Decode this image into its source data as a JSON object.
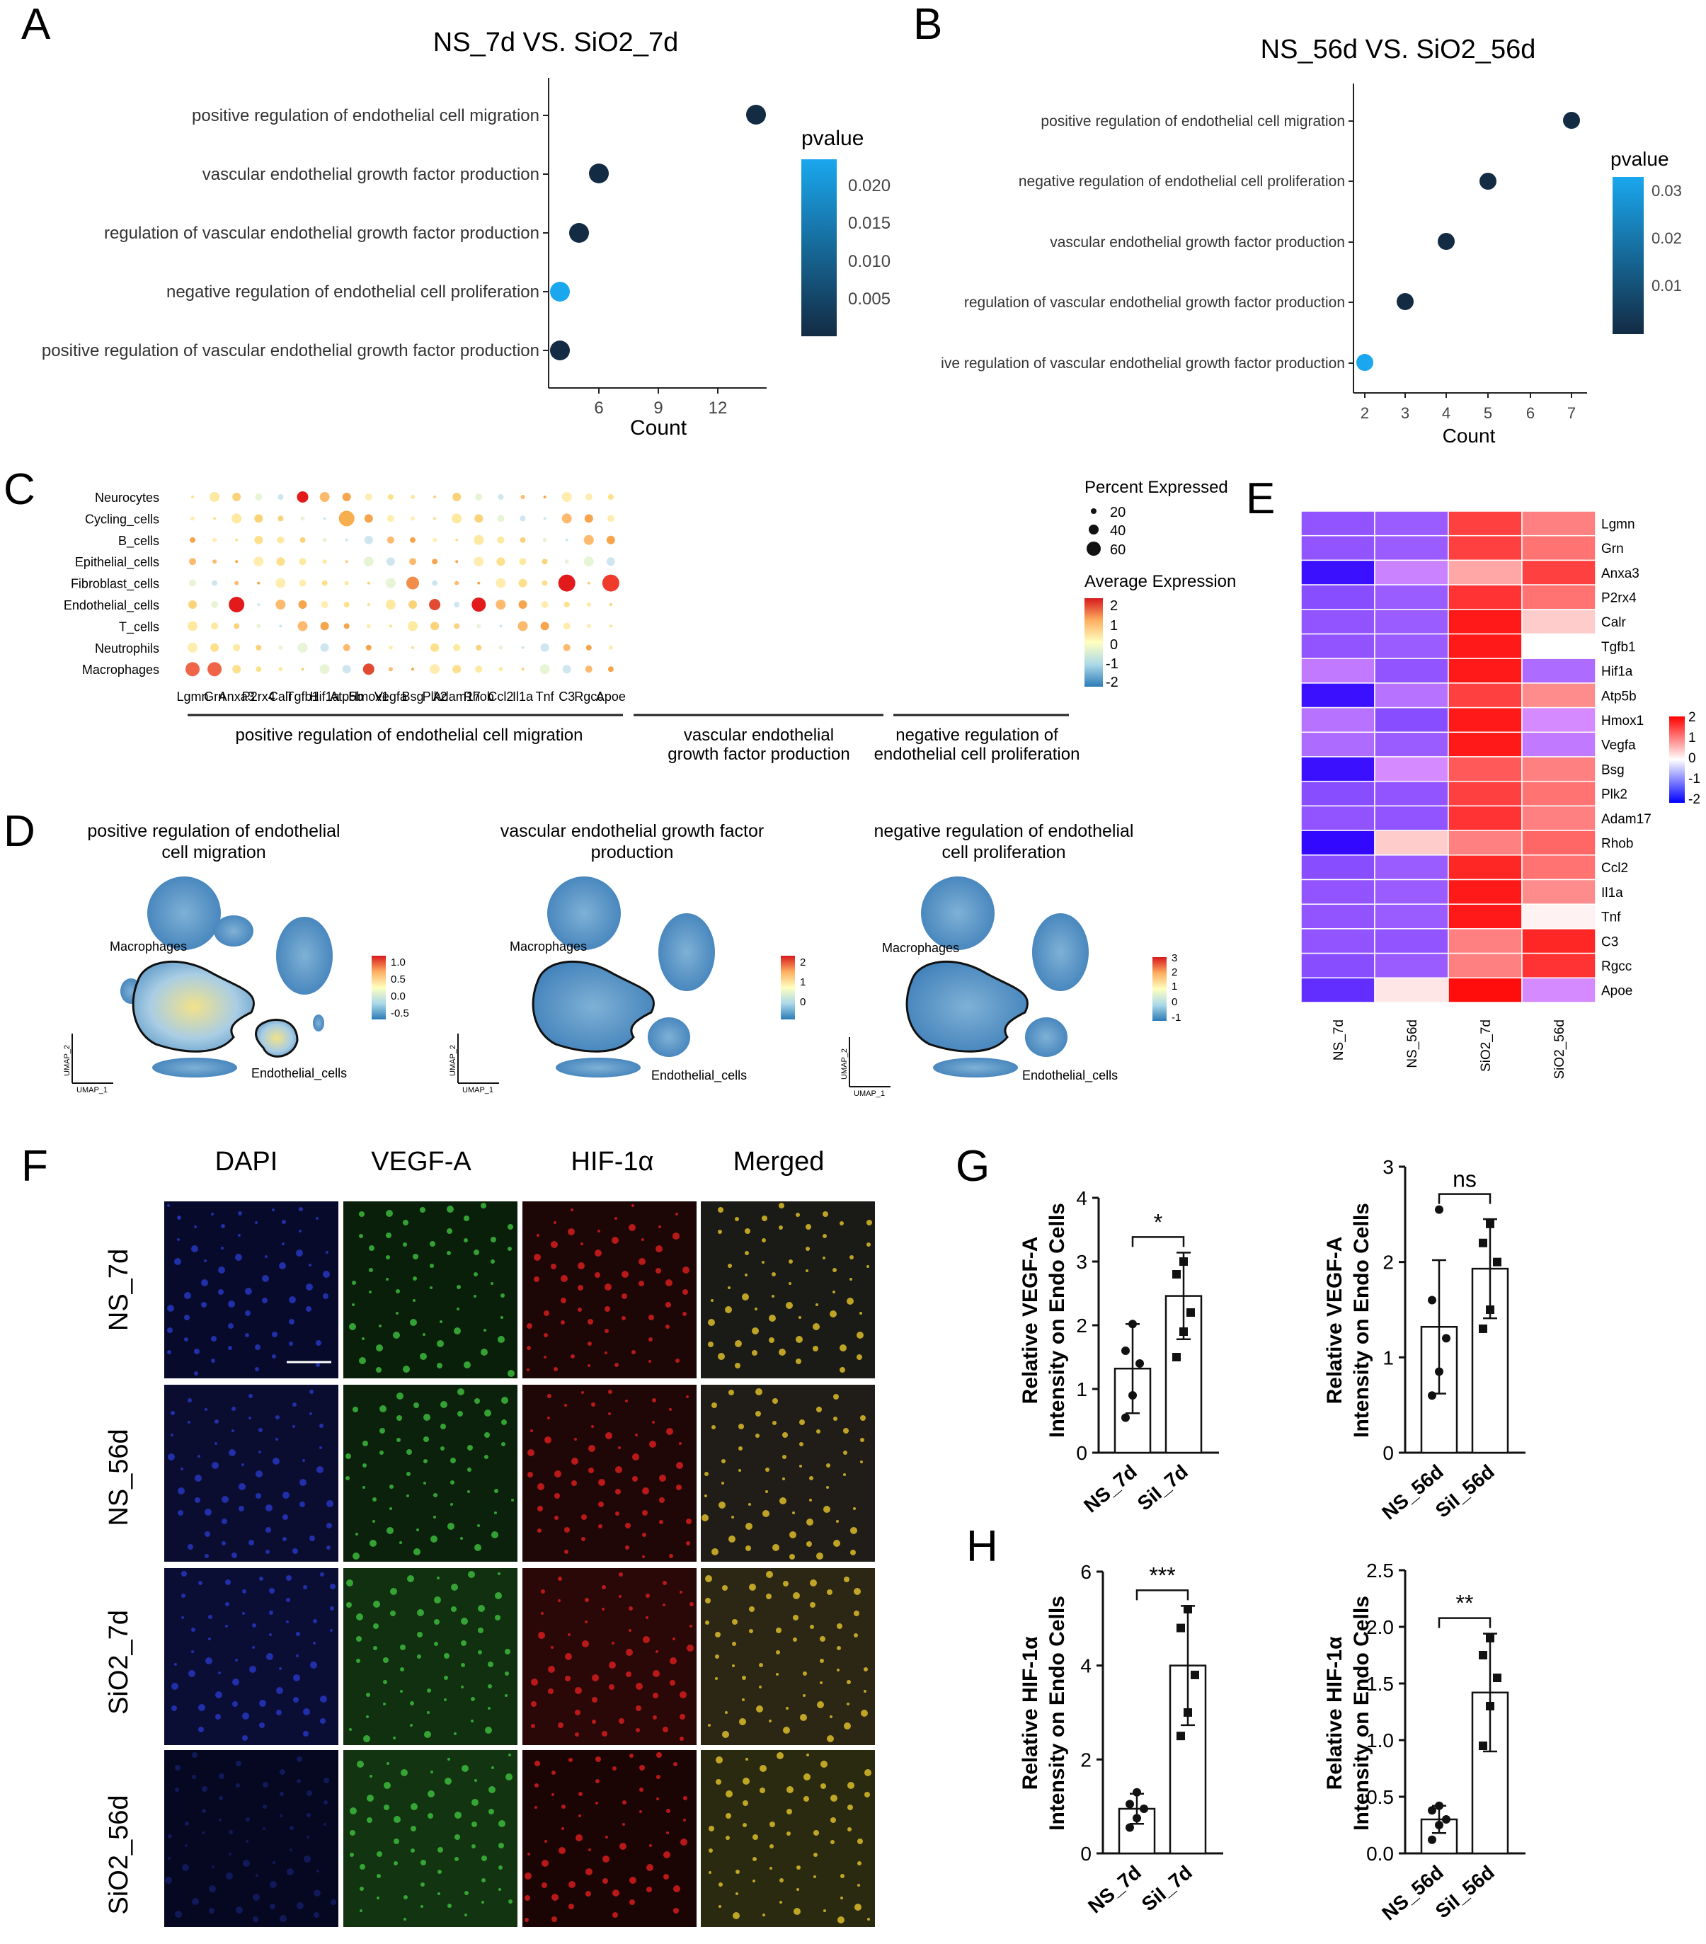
{
  "panels": {
    "A": {
      "letter": "A",
      "title": "NS_7d VS. SiO2_7d",
      "terms": [
        "positive regulation of endothelial cell migration",
        "vascular endothelial growth factor production",
        "regulation of vascular endothelial growth factor production",
        "negative regulation of endothelial cell proliferation",
        "positive regulation of vascular endothelial growth factor production"
      ],
      "x_label": "Count",
      "x_ticks": [
        "6",
        "9",
        "12"
      ],
      "legend_title": "pvalue",
      "legend_ticks": [
        "0.020",
        "0.015",
        "0.010",
        "0.005"
      ]
    },
    "B": {
      "letter": "B",
      "title": "NS_56d VS. SiO2_56d",
      "terms": [
        "positive regulation of endothelial cell migration",
        "negative regulation of endothelial cell proliferation",
        "vascular endothelial growth factor production",
        "regulation of vascular endothelial growth factor production",
        "ive regulation of vascular endothelial growth factor production"
      ],
      "x_label": "Count",
      "x_ticks": [
        "2",
        "3",
        "4",
        "5",
        "6",
        "7"
      ],
      "legend_title": "pvalue",
      "legend_ticks": [
        "0.03",
        "0.02",
        "0.01"
      ]
    },
    "C": {
      "letter": "C",
      "cell_types": [
        "Neurocytes",
        "Cycling_cells",
        "B_cells",
        "Epithelial_cells",
        "Fibroblast_cells",
        "Endothelial_cells",
        "T_cells",
        "Neutrophils",
        "Macrophages"
      ],
      "genes": [
        "Lgmn",
        "Grn",
        "Anxa3",
        "P2rx4",
        "Calr",
        "Tgfb1",
        "Hif1a",
        "Atp5b",
        "Hmox1",
        "Vegfa",
        "Bsg",
        "Plk2",
        "Adam17",
        "Rhob",
        "Ccl2",
        "Il1a",
        "Tnf",
        "C3",
        "Rgcc",
        "Apoe"
      ],
      "groups": [
        {
          "label_lines": [
            "positive regulation of endothelial cell migration"
          ]
        },
        {
          "label_lines": [
            "vascular endothelial",
            "growth factor production"
          ]
        },
        {
          "label_lines": [
            "negative regulation of",
            "endothelial cell proliferation"
          ]
        }
      ],
      "size_legend_title": "Percent Expressed",
      "size_legend_values": [
        "20",
        "40",
        "60"
      ],
      "color_legend_title": "Average Expression",
      "color_legend_ticks": [
        "2",
        "1",
        "0",
        "-1",
        "-2"
      ]
    },
    "D": {
      "letter": "D",
      "maps": [
        {
          "title_lines": [
            "positive regulation of endothelial",
            "cell migration"
          ],
          "ticks": [
            "1.0",
            "0.5",
            "0.0",
            "-0.5"
          ],
          "label_a": "Macrophages",
          "label_b": "Endothelial_cells"
        },
        {
          "title_lines": [
            "vascular endothelial growth factor",
            "production"
          ],
          "ticks": [
            "2",
            "1",
            "0"
          ],
          "label_a": "Macrophages",
          "label_b": "Endothelial_cells"
        },
        {
          "title_lines": [
            "negative regulation of endothelial",
            "cell proliferation"
          ],
          "ticks": [
            "3",
            "2",
            "1",
            "0",
            "-1"
          ],
          "label_a": "Macrophages",
          "label_b": "Endothelial_cells"
        }
      ],
      "axis_y": "UMAP_2",
      "axis_x": "UMAP_1"
    },
    "E": {
      "letter": "E",
      "genes": [
        "Lgmn",
        "Grn",
        "Anxa3",
        "P2rx4",
        "Calr",
        "Tgfb1",
        "Hif1a",
        "Atp5b",
        "Hmox1",
        "Vegfa",
        "Bsg",
        "Plk2",
        "Adam17",
        "Rhob",
        "Ccl2",
        "Il1a",
        "Tnf",
        "C3",
        "Rgcc",
        "Apoe"
      ],
      "samples": [
        "NS_7d",
        "NS_56d",
        "SiO2_7d",
        "SiO2_56d"
      ],
      "legend_ticks": [
        "2",
        "1",
        "0",
        "-1",
        "-2"
      ],
      "values": [
        [
          -0.9,
          -0.8,
          1.5,
          1.0
        ],
        [
          -0.9,
          -0.8,
          1.5,
          1.1
        ],
        [
          -1.8,
          -0.3,
          0.7,
          1.5
        ],
        [
          -1.0,
          -0.8,
          1.6,
          1.1
        ],
        [
          -0.9,
          -0.8,
          1.8,
          0.4
        ],
        [
          -0.9,
          -0.8,
          1.8,
          0.0
        ],
        [
          -0.4,
          -0.9,
          1.8,
          -0.6
        ],
        [
          -1.8,
          -0.5,
          1.5,
          0.9
        ],
        [
          -0.5,
          -1.0,
          1.8,
          -0.2
        ],
        [
          -0.6,
          -0.8,
          1.8,
          -0.4
        ],
        [
          -1.8,
          -0.2,
          1.3,
          1.0
        ],
        [
          -1.0,
          -0.9,
          1.5,
          1.1
        ],
        [
          -0.9,
          -0.9,
          1.6,
          1.0
        ],
        [
          -1.9,
          0.4,
          1.0,
          1.2
        ],
        [
          -1.0,
          -0.8,
          1.7,
          1.1
        ],
        [
          -0.9,
          -0.8,
          1.8,
          0.9
        ],
        [
          -0.9,
          -0.8,
          1.8,
          0.1
        ],
        [
          -0.9,
          -0.9,
          1.0,
          1.7
        ],
        [
          -1.0,
          -0.8,
          1.0,
          1.6
        ],
        [
          -1.4,
          0.2,
          1.9,
          -0.2
        ]
      ]
    },
    "F": {
      "letter": "F",
      "col_headers": [
        "DAPI",
        "VEGF-A",
        "HIF-1α",
        "Merged"
      ],
      "row_labels": [
        "NS_7d",
        "NS_56d",
        "SiO2_7d",
        "SiO2_56d"
      ]
    },
    "G": {
      "letter": "G",
      "charts": [
        {
          "ylabel_lines": [
            "Relative VEGF-A",
            "Intensity on Endo Cells"
          ],
          "ticks": [
            "0",
            "1",
            "2",
            "3",
            "4"
          ],
          "ymax": 4,
          "categories": [
            "NS_7d",
            "SiI_7d"
          ],
          "means": [
            1.32,
            2.46
          ],
          "sd": [
            0.7,
            0.68
          ],
          "points": [
            [
              0.55,
              0.9,
              1.4,
              1.6,
              2.02
            ],
            [
              1.5,
              1.9,
              2.2,
              2.8,
              3.0
            ]
          ],
          "sig": "*"
        },
        {
          "ylabel_lines": [
            "Relative VEGF-A",
            "Intensity on Endo Cells"
          ],
          "ticks": [
            "0",
            "1",
            "2",
            "3"
          ],
          "ymax": 3,
          "categories": [
            "NS_56d",
            "SiI_56d"
          ],
          "means": [
            1.32,
            1.93
          ],
          "sd": [
            0.7,
            0.52
          ],
          "points": [
            [
              0.6,
              0.85,
              1.2,
              1.6,
              2.55
            ],
            [
              1.3,
              1.5,
              2.0,
              2.2,
              2.4
            ]
          ],
          "sig": "ns"
        }
      ]
    },
    "H": {
      "letter": "H",
      "charts": [
        {
          "ylabel_lines": [
            "Relative HIF-1α",
            "Intensity on Endo Cells"
          ],
          "ticks": [
            "0",
            "2",
            "4",
            "6"
          ],
          "ymax": 6,
          "categories": [
            "NS_7d",
            "SiI_7d"
          ],
          "means": [
            0.95,
            4.0
          ],
          "sd": [
            0.32,
            1.27
          ],
          "points": [
            [
              0.55,
              0.75,
              0.95,
              1.05,
              1.3
            ],
            [
              2.5,
              3.0,
              3.8,
              4.8,
              5.2
            ]
          ],
          "sig": "***"
        },
        {
          "ylabel_lines": [
            "Relative HIF-1α",
            "Intensity on Endo Cells"
          ],
          "ticks": [
            "0.0",
            "0.5",
            "1.0",
            "1.5",
            "2.0",
            "2.5"
          ],
          "ymax": 2.5,
          "categories": [
            "NS_56d",
            "SiI_56d"
          ],
          "means": [
            0.3,
            1.42
          ],
          "sd": [
            0.12,
            0.52
          ],
          "points": [
            [
              0.12,
              0.25,
              0.3,
              0.38,
              0.42
            ],
            [
              0.95,
              1.3,
              1.55,
              1.75,
              1.9
            ]
          ],
          "sig": "**"
        }
      ]
    }
  }
}
